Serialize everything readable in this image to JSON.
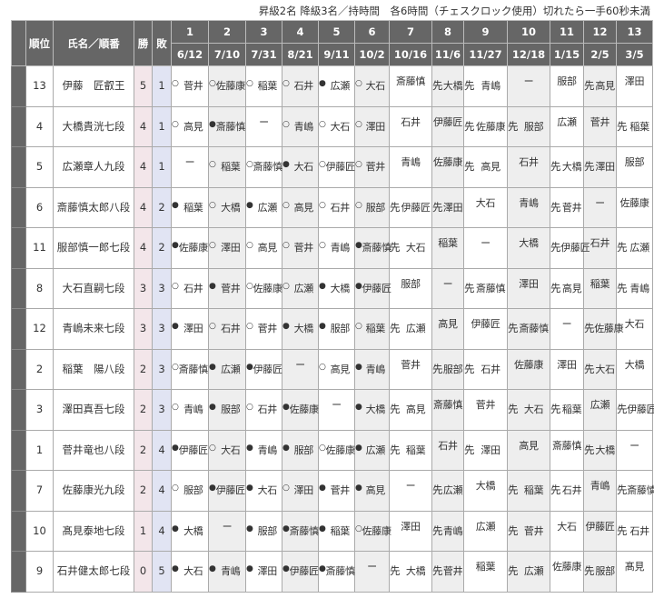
{
  "note": "昇級2名 降級3名／持時間　各6時間（チェスクロック使用）切れたら一手60秒未満",
  "headers": {
    "rank": "順位",
    "name": "氏名／順番",
    "wins": "勝",
    "losses": "敗"
  },
  "rounds": [
    {
      "no": "1",
      "date": "6/12"
    },
    {
      "no": "2",
      "date": "7/10"
    },
    {
      "no": "3",
      "date": "7/31"
    },
    {
      "no": "4",
      "date": "8/21"
    },
    {
      "no": "5",
      "date": "9/11"
    },
    {
      "no": "6",
      "date": "10/2"
    },
    {
      "no": "7",
      "date": "10/16"
    },
    {
      "no": "8",
      "date": "11/6"
    },
    {
      "no": "9",
      "date": "11/27"
    },
    {
      "no": "10",
      "date": "12/18"
    },
    {
      "no": "11",
      "date": "1/15"
    },
    {
      "no": "12",
      "date": "2/5"
    },
    {
      "no": "13",
      "date": "3/5"
    }
  ],
  "rows": [
    {
      "rank": "13",
      "name": "伊藤　匠叡王",
      "wins": "5",
      "losses": "1",
      "games": [
        "○菅井",
        "○佐藤康",
        "○稲葉",
        "○石井",
        "●広瀬",
        "○大石",
        "斎藤慎",
        "先大橋",
        "先青嶋",
        "ー",
        "服部",
        "先高見",
        "澤田"
      ]
    },
    {
      "rank": "4",
      "name": "大橋貴洸七段",
      "wins": "4",
      "losses": "1",
      "games": [
        "○高見",
        "●斎藤慎",
        "ー",
        "○青嶋",
        "○大石",
        "○澤田",
        "石井",
        "伊藤匠",
        "先佐藤康",
        "先服部",
        "広瀬",
        "菅井",
        "先稲葉"
      ]
    },
    {
      "rank": "5",
      "name": "広瀬章人九段",
      "wins": "4",
      "losses": "1",
      "games": [
        "ー",
        "○稲葉",
        "○斎藤慎",
        "●大石",
        "○伊藤匠",
        "○菅井",
        "青嶋",
        "佐藤康",
        "先高見",
        "石井",
        "先大橋",
        "先澤田",
        "服部"
      ]
    },
    {
      "rank": "6",
      "name": "斎藤慎太郎八段",
      "wins": "4",
      "losses": "2",
      "games": [
        "●稲葉",
        "○大橋",
        "●広瀬",
        "○高見",
        "○石井",
        "○服部",
        "先伊藤匠",
        "先澤田",
        "大石",
        "青嶋",
        "先菅井",
        "ー",
        "佐藤康"
      ]
    },
    {
      "rank": "11",
      "name": "服部慎一郎七段",
      "wins": "4",
      "losses": "2",
      "games": [
        "●佐藤康",
        "○澤田",
        "○高見",
        "○菅井",
        "○青嶋",
        "●斎藤慎",
        "先大石",
        "稲葉",
        "ー",
        "大橋",
        "先伊藤匠",
        "石井",
        "先広瀬"
      ]
    },
    {
      "rank": "8",
      "name": "大石直嗣七段",
      "wins": "3",
      "losses": "3",
      "games": [
        "○石井",
        "●菅井",
        "○佐藤康",
        "○広瀬",
        "●大橋",
        "●伊藤匠",
        "服部",
        "ー",
        "先斎藤慎",
        "澤田",
        "先高見",
        "稲葉",
        "先青嶋"
      ]
    },
    {
      "rank": "12",
      "name": "青嶋未来七段",
      "wins": "3",
      "losses": "3",
      "games": [
        "●澤田",
        "○石井",
        "○菅井",
        "●大橋",
        "●服部",
        "○稲葉",
        "先広瀬",
        "高見",
        "伊藤匠",
        "先斎藤慎",
        "ー",
        "先佐藤康",
        "大石"
      ]
    },
    {
      "rank": "2",
      "name": "稲葉　陽八段",
      "wins": "2",
      "losses": "3",
      "games": [
        "○斎藤慎",
        "●広瀬",
        "●伊藤匠",
        "ー",
        "○高見",
        "●青嶋",
        "菅井",
        "先服部",
        "先石井",
        "佐藤康",
        "澤田",
        "先大石",
        "大橋"
      ]
    },
    {
      "rank": "3",
      "name": "澤田真吾七段",
      "wins": "2",
      "losses": "3",
      "games": [
        "○青嶋",
        "●服部",
        "○石井",
        "●佐藤康",
        "ー",
        "●大橋",
        "先高見",
        "斎藤慎",
        "菅井",
        "先大石",
        "先稲葉",
        "広瀬",
        "先伊藤匠"
      ]
    },
    {
      "rank": "1",
      "name": "菅井竜也八段",
      "wins": "2",
      "losses": "4",
      "games": [
        "●伊藤匠",
        "○大石",
        "●青嶋",
        "●服部",
        "○佐藤康",
        "●広瀬",
        "先稲葉",
        "石井",
        "先澤田",
        "高見",
        "斎藤慎",
        "先大橋",
        "ー"
      ]
    },
    {
      "rank": "7",
      "name": "佐藤康光九段",
      "wins": "2",
      "losses": "4",
      "games": [
        "○服部",
        "●伊藤匠",
        "●大石",
        "○澤田",
        "●菅井",
        "●高見",
        "ー",
        "先広瀬",
        "大橋",
        "先稲葉",
        "先石井",
        "青嶋",
        "先斎藤慎"
      ]
    },
    {
      "rank": "10",
      "name": "髙見泰地七段",
      "wins": "1",
      "losses": "4",
      "games": [
        "●大橋",
        "ー",
        "●服部",
        "●斎藤慎",
        "●稲葉",
        "○佐藤康",
        "澤田",
        "先青嶋",
        "広瀬",
        "先菅井",
        "大石",
        "伊藤匠",
        "先石井"
      ]
    },
    {
      "rank": "9",
      "name": "石井健太郎七段",
      "wins": "0",
      "losses": "5",
      "games": [
        "●大石",
        "●青嶋",
        "●澤田",
        "●伊藤匠",
        "●斎藤慎",
        "ー",
        "先大橋",
        "先菅井",
        "稲葉",
        "先広瀬",
        "佐藤康",
        "先服部",
        "髙見"
      ]
    }
  ],
  "colors": {
    "header": "#666666",
    "wins_bg": "#f3e6ea",
    "losses_bg": "#e1e4f3",
    "alt_col": "#eeeeee"
  }
}
